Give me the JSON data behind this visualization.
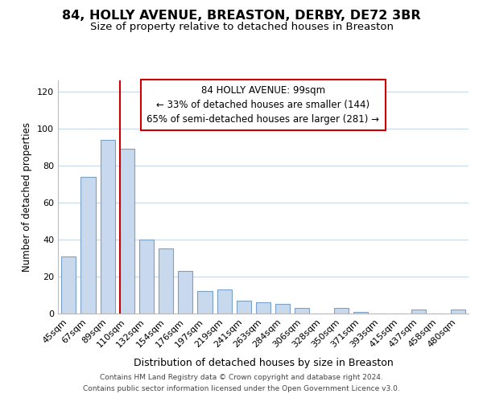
{
  "title": "84, HOLLY AVENUE, BREASTON, DERBY, DE72 3BR",
  "subtitle": "Size of property relative to detached houses in Breaston",
  "xlabel": "Distribution of detached houses by size in Breaston",
  "ylabel": "Number of detached properties",
  "bar_labels": [
    "45sqm",
    "67sqm",
    "89sqm",
    "110sqm",
    "132sqm",
    "154sqm",
    "176sqm",
    "197sqm",
    "219sqm",
    "241sqm",
    "263sqm",
    "284sqm",
    "306sqm",
    "328sqm",
    "350sqm",
    "371sqm",
    "393sqm",
    "415sqm",
    "437sqm",
    "458sqm",
    "480sqm"
  ],
  "bar_values": [
    31,
    74,
    94,
    89,
    40,
    35,
    23,
    12,
    13,
    7,
    6,
    5,
    3,
    0,
    3,
    1,
    0,
    0,
    2,
    0,
    2
  ],
  "bar_color": "#c8d9ee",
  "bar_edge_color": "#7aa0c4",
  "vline_color": "#cc0000",
  "vline_index": 3,
  "ylim": [
    0,
    126
  ],
  "yticks": [
    0,
    20,
    40,
    60,
    80,
    100,
    120
  ],
  "annotation_title": "84 HOLLY AVENUE: 99sqm",
  "annotation_line1": "← 33% of detached houses are smaller (144)",
  "annotation_line2": "65% of semi-detached houses are larger (281) →",
  "footer_line1": "Contains HM Land Registry data © Crown copyright and database right 2024.",
  "footer_line2": "Contains public sector information licensed under the Open Government Licence v3.0.",
  "background_color": "#ffffff",
  "grid_color": "#c8d8e8",
  "title_fontsize": 11.5,
  "subtitle_fontsize": 9.5,
  "ylabel_fontsize": 8.5,
  "xlabel_fontsize": 9,
  "tick_fontsize": 8,
  "footer_fontsize": 6.5,
  "ann_fontsize": 8.5
}
